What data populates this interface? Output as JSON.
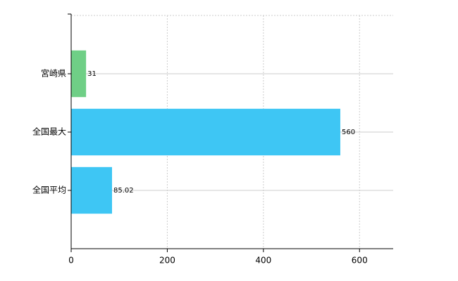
{
  "chart_data": {
    "type": "barh",
    "categories": [
      "宮崎県",
      "全国最大",
      "全国平均"
    ],
    "values": [
      31,
      560,
      85.02
    ],
    "colors": [
      "#6fcf86",
      "#3ec6f4",
      "#3ec6f4"
    ],
    "xlim": [
      0,
      670
    ],
    "xticks": [
      0,
      200,
      400,
      600
    ],
    "grid": true
  }
}
